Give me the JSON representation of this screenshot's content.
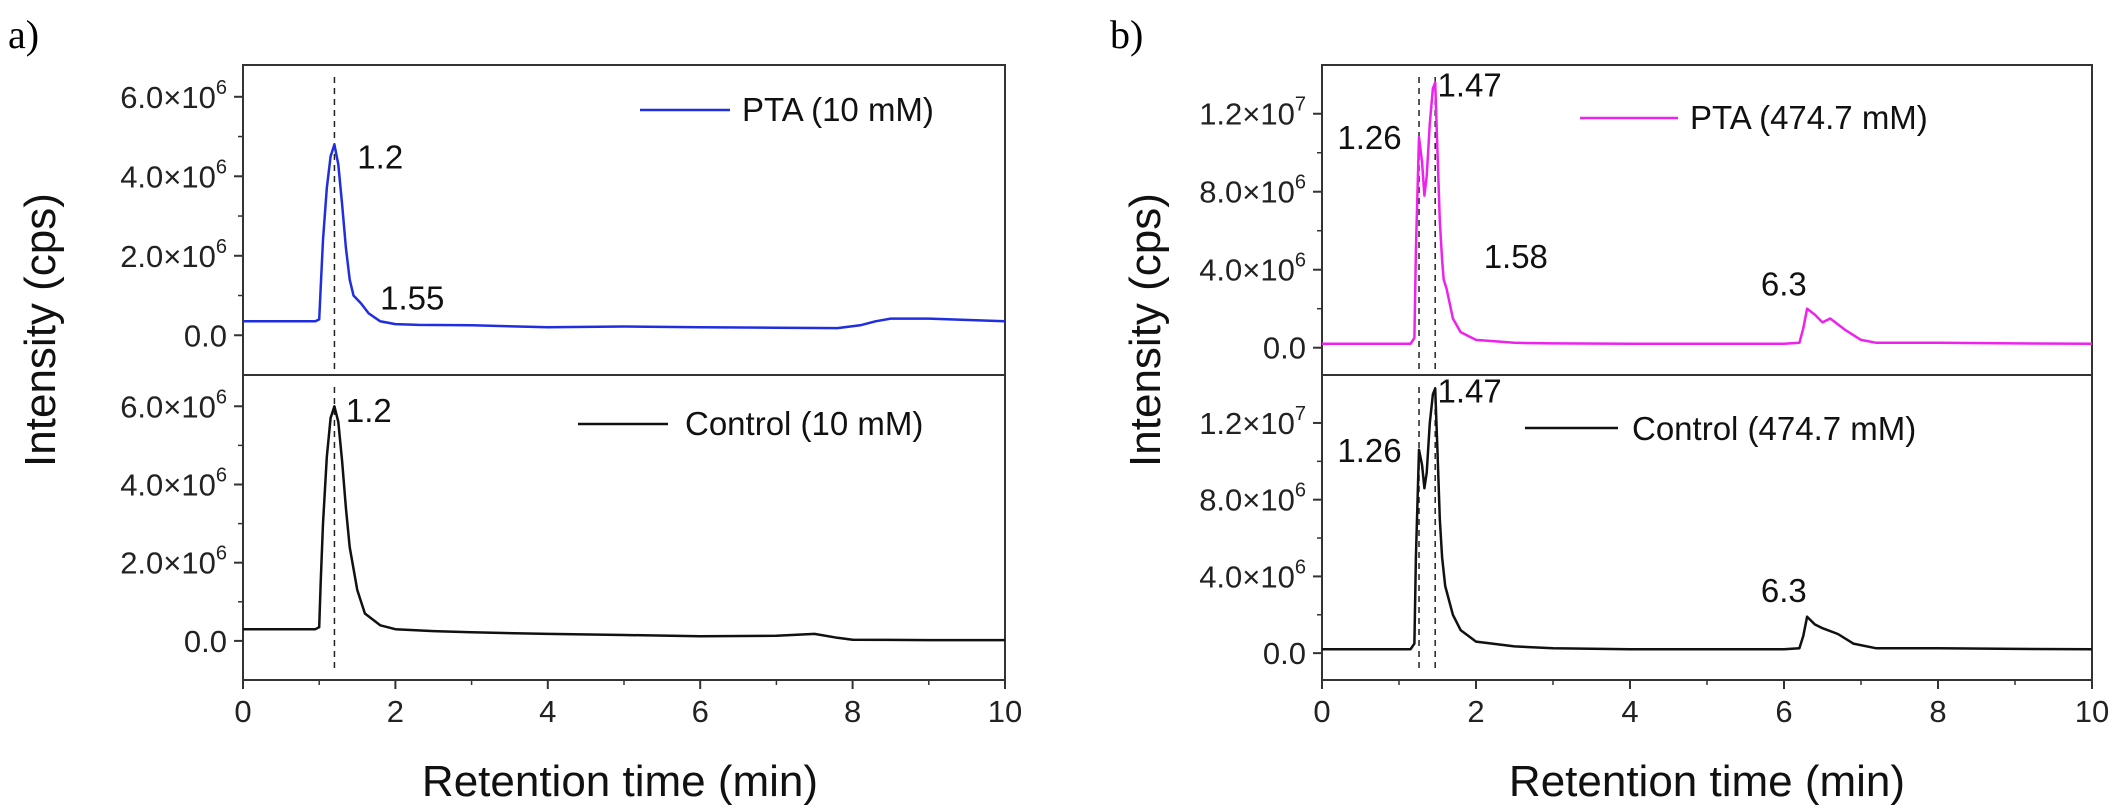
{
  "chart_data": [
    {
      "panel_label": "a)",
      "type": "line",
      "ylabel": "Intensity (cps)",
      "xlabel": "Retention time (min)",
      "xlim": [
        0,
        10
      ],
      "xticks": [
        "0",
        "2",
        "4",
        "6",
        "8",
        "10"
      ],
      "subplots": [
        {
          "ylim": [
            -1000000,
            6800000
          ],
          "yticks": [
            {
              "v": 0,
              "label": "0.0",
              "exp": ""
            },
            {
              "v": 2000000,
              "label": "2.0×10",
              "exp": "6"
            },
            {
              "v": 4000000,
              "label": "4.0×10",
              "exp": "6"
            },
            {
              "v": 6000000,
              "label": "6.0×10",
              "exp": "6"
            }
          ],
          "series": [
            {
              "name": "PTA (10 mM)",
              "color": "#1f2ee0",
              "x": [
                0,
                0.95,
                1.0,
                1.02,
                1.05,
                1.1,
                1.15,
                1.2,
                1.25,
                1.3,
                1.35,
                1.4,
                1.45,
                1.55,
                1.65,
                1.8,
                2.0,
                2.3,
                3,
                4,
                5,
                6,
                7,
                7.8,
                8.1,
                8.3,
                8.5,
                9,
                10
              ],
              "y": [
                350000,
                350000,
                400000,
                1200000,
                2400000,
                3700000,
                4500000,
                4800000,
                4300000,
                3300000,
                2200000,
                1400000,
                1000000,
                800000,
                550000,
                350000,
                280000,
                260000,
                250000,
                200000,
                220000,
                200000,
                190000,
                180000,
                250000,
                350000,
                420000,
                420000,
                350000
              ]
            }
          ],
          "annotations": [
            {
              "text": "1.2",
              "x": 1.5,
              "y": 4500000
            },
            {
              "text": "1.55",
              "x": 1.8,
              "y": 950000
            }
          ],
          "vlines": [
            1.2
          ]
        },
        {
          "ylim": [
            -1000000,
            6800000
          ],
          "yticks": [
            {
              "v": 0,
              "label": "0.0",
              "exp": ""
            },
            {
              "v": 2000000,
              "label": "2.0×10",
              "exp": "6"
            },
            {
              "v": 4000000,
              "label": "4.0×10",
              "exp": "6"
            },
            {
              "v": 6000000,
              "label": "6.0×10",
              "exp": "6"
            }
          ],
          "series": [
            {
              "name": "Control (10 mM)",
              "color": "#111111",
              "x": [
                0,
                0.95,
                1.0,
                1.02,
                1.05,
                1.1,
                1.15,
                1.2,
                1.25,
                1.3,
                1.35,
                1.4,
                1.5,
                1.6,
                1.8,
                2.0,
                2.5,
                3,
                4,
                5,
                6,
                7,
                7.5,
                7.8,
                8,
                9,
                10
              ],
              "y": [
                300000,
                300000,
                350000,
                1500000,
                3000000,
                4700000,
                5700000,
                6000000,
                5600000,
                4600000,
                3400000,
                2400000,
                1300000,
                700000,
                400000,
                300000,
                250000,
                220000,
                180000,
                150000,
                120000,
                130000,
                180000,
                80000,
                30000,
                20000,
                20000
              ]
            }
          ],
          "annotations": [
            {
              "text": "1.2",
              "x": 1.35,
              "y": 5900000
            }
          ],
          "vlines": [
            1.2
          ]
        }
      ]
    },
    {
      "panel_label": "b)",
      "type": "line",
      "ylabel": "Intensity (cps)",
      "xlabel": "Retention time (min)",
      "xlim": [
        0,
        10
      ],
      "xticks": [
        "0",
        "2",
        "4",
        "6",
        "8",
        "10"
      ],
      "subplots": [
        {
          "ylim": [
            -1400000,
            14500000
          ],
          "yticks": [
            {
              "v": 0,
              "label": "0.0",
              "exp": ""
            },
            {
              "v": 4000000,
              "label": "4.0×10",
              "exp": "6"
            },
            {
              "v": 8000000,
              "label": "8.0×10",
              "exp": "6"
            },
            {
              "v": 12000000,
              "label": "1.2×10",
              "exp": "7"
            }
          ],
          "series": [
            {
              "name": "PTA (474.7 mM)",
              "color": "#ee22ee",
              "x": [
                0,
                1.15,
                1.2,
                1.22,
                1.26,
                1.3,
                1.33,
                1.36,
                1.4,
                1.44,
                1.47,
                1.5,
                1.53,
                1.56,
                1.58,
                1.62,
                1.7,
                1.8,
                2.0,
                2.5,
                3,
                4,
                5,
                6,
                6.2,
                6.25,
                6.3,
                6.4,
                6.5,
                6.6,
                6.8,
                7.0,
                7.2,
                8,
                9,
                10
              ],
              "y": [
                200000,
                200000,
                500000,
                5000000,
                10800000,
                9500000,
                7800000,
                8800000,
                11500000,
                13300000,
                13600000,
                10000000,
                6500000,
                4500000,
                3500000,
                3000000,
                1500000,
                800000,
                400000,
                250000,
                220000,
                200000,
                200000,
                200000,
                250000,
                1000000,
                2000000,
                1700000,
                1300000,
                1500000,
                900000,
                400000,
                250000,
                250000,
                220000,
                200000
              ]
            }
          ],
          "annotations": [
            {
              "text": "1.26",
              "x": 0.2,
              "y": 10800000
            },
            {
              "text": "1.47",
              "x": 1.5,
              "y": 13500000
            },
            {
              "text": "1.58",
              "x": 2.1,
              "y": 4700000
            },
            {
              "text": "6.3",
              "x": 5.7,
              "y": 3300000
            }
          ],
          "vlines": [
            1.26,
            1.47
          ]
        },
        {
          "ylim": [
            -1400000,
            14500000
          ],
          "yticks": [
            {
              "v": 0,
              "label": "0.0",
              "exp": ""
            },
            {
              "v": 4000000,
              "label": "4.0×10",
              "exp": "6"
            },
            {
              "v": 8000000,
              "label": "8.0×10",
              "exp": "6"
            },
            {
              "v": 12000000,
              "label": "1.2×10",
              "exp": "7"
            }
          ],
          "series": [
            {
              "name": "Control (474.7 mM)",
              "color": "#111111",
              "x": [
                0,
                1.15,
                1.2,
                1.22,
                1.26,
                1.3,
                1.33,
                1.36,
                1.4,
                1.44,
                1.47,
                1.5,
                1.53,
                1.56,
                1.6,
                1.7,
                1.8,
                2.0,
                2.5,
                3,
                4,
                5,
                6,
                6.2,
                6.25,
                6.3,
                6.4,
                6.5,
                6.7,
                6.9,
                7.2,
                8,
                9,
                10
              ],
              "y": [
                200000,
                200000,
                500000,
                5000000,
                10600000,
                9800000,
                8600000,
                9400000,
                12000000,
                13500000,
                13800000,
                10500000,
                7000000,
                5000000,
                3500000,
                2000000,
                1200000,
                600000,
                350000,
                250000,
                200000,
                200000,
                200000,
                250000,
                900000,
                1900000,
                1500000,
                1300000,
                1000000,
                500000,
                250000,
                250000,
                220000,
                200000
              ]
            }
          ],
          "annotations": [
            {
              "text": "1.26",
              "x": 0.2,
              "y": 10600000
            },
            {
              "text": "1.47",
              "x": 1.5,
              "y": 13700000
            },
            {
              "text": "6.3",
              "x": 5.7,
              "y": 3300000
            }
          ],
          "vlines": [
            1.26,
            1.47
          ]
        }
      ]
    }
  ]
}
